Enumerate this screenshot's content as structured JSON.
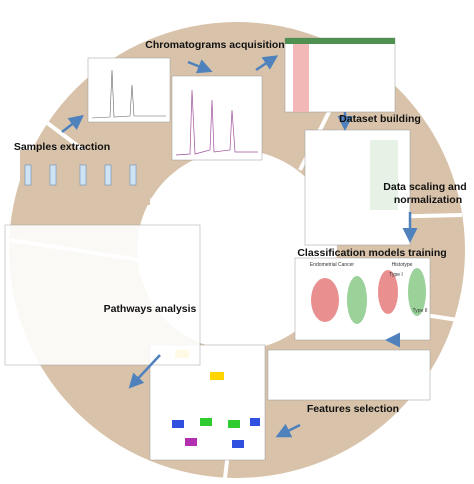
{
  "steps": [
    {
      "label": [
        "Chromatograms acquisition"
      ]
    },
    {
      "label": [
        "Dataset building"
      ]
    },
    {
      "label": [
        "Data scaling and",
        "normalization"
      ]
    },
    {
      "label": [
        "Classification models training"
      ],
      "panel_texts": [
        "Endometrial Cancer",
        "Histotype",
        "Type I",
        "Type II"
      ]
    },
    {
      "label": [
        "Features selection"
      ]
    },
    {
      "label": [
        "Pathways analysis"
      ]
    },
    {
      "label": [
        "Samples extraction"
      ]
    }
  ]
}
